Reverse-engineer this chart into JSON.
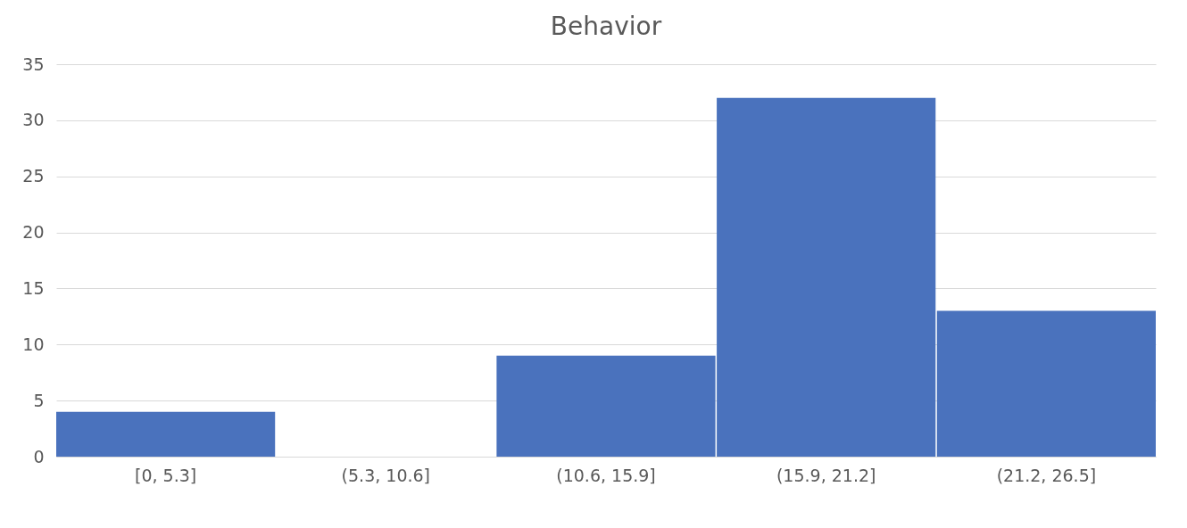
{
  "chart_data": {
    "type": "bar",
    "title": "Behavior",
    "categories": [
      "[0, 5.3]",
      "(5.3, 10.6]",
      "(10.6, 15.9]",
      "(15.9, 21.2]",
      "(21.2, 26.5]"
    ],
    "values": [
      4,
      0,
      9,
      32,
      13
    ],
    "color": "#4a72bd",
    "ylim": [
      0,
      35
    ],
    "yticks": [
      0,
      5,
      10,
      15,
      20,
      25,
      30,
      35
    ],
    "grid": "y"
  }
}
